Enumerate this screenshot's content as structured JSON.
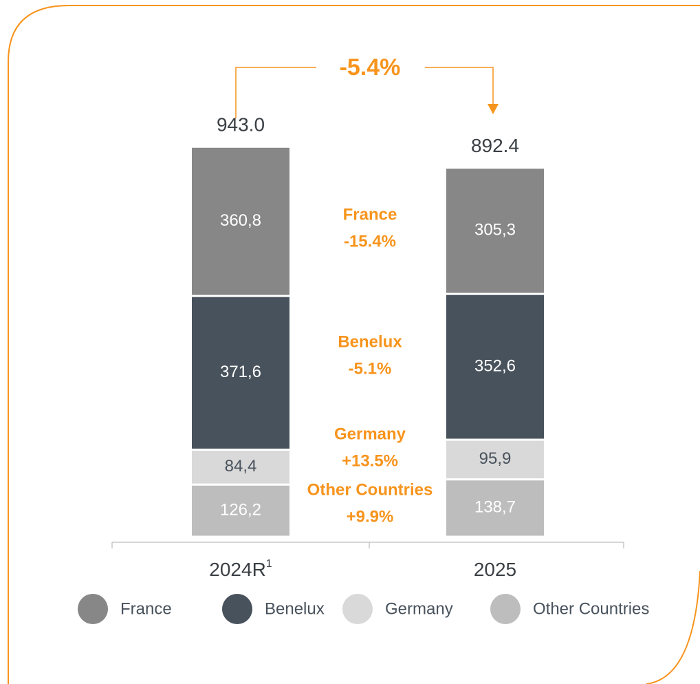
{
  "chart_data": {
    "type": "stacked_bar",
    "categories": [
      "2024R",
      "2025"
    ],
    "category_footnotes": [
      "1",
      null
    ],
    "ylim": [
      0,
      1000
    ],
    "totals": [
      943.0,
      892.4
    ],
    "total_labels": [
      "943.0",
      "892.4"
    ],
    "total_change": "-5.4%",
    "series": [
      {
        "name": "France",
        "color": "#878787",
        "label_color": "#ffffff",
        "values": [
          360.8,
          305.3
        ],
        "value_labels": [
          "360,8",
          "305,3"
        ],
        "change": "-15.4%"
      },
      {
        "name": "Benelux",
        "color": "#48525c",
        "label_color": "#ffffff",
        "values": [
          371.6,
          352.6
        ],
        "value_labels": [
          "371,6",
          "352,6"
        ],
        "change": "-5.1%"
      },
      {
        "name": "Germany",
        "color": "#d9d9d9",
        "label_color": "#48525c",
        "values": [
          84.4,
          95.9
        ],
        "value_labels": [
          "84,4",
          "95,9"
        ],
        "change": "+13.5%"
      },
      {
        "name": "Other Countries",
        "color": "#bdbdbd",
        "label_color": "#ffffff",
        "values": [
          126.2,
          138.7
        ],
        "value_labels": [
          "126,2",
          "138,7"
        ],
        "change": "+9.9%"
      }
    ],
    "accent_color": "#f7941d"
  }
}
